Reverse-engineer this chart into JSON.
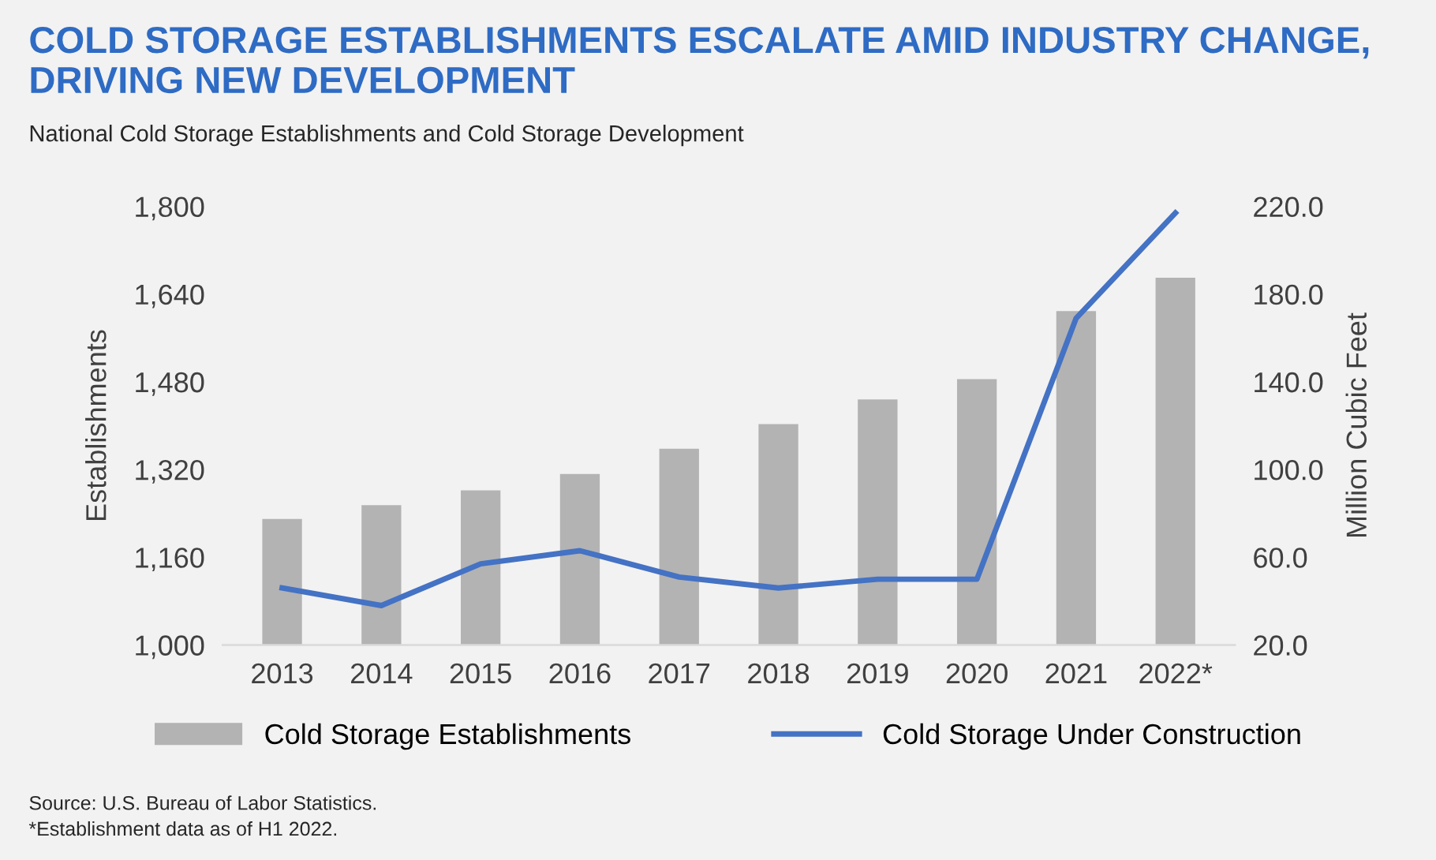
{
  "chart_data": {
    "type": "bar",
    "title": "COLD STORAGE ESTABLISHMENTS ESCALATE AMID INDUSTRY CHANGE, DRIVING NEW DEVELOPMENT",
    "subtitle": "National Cold Storage Establishments and Cold Storage Development",
    "ylabel": "Establishments",
    "y2label": "Million Cubic Feet",
    "categories": [
      "2013",
      "2014",
      "2015",
      "2016",
      "2017",
      "2018",
      "2019",
      "2020",
      "2021",
      "2022*"
    ],
    "series": [
      {
        "name": "Cold Storage Establishments",
        "color": "#b3b3b3",
        "values": [
          1230,
          1255,
          1282,
          1312,
          1358,
          1403,
          1448,
          1485,
          1609,
          1670
        ]
      },
      {
        "name": "Cold Storage Under Construction",
        "type": "line",
        "axis": "y2",
        "color": "#4472c4",
        "values": [
          46,
          38,
          57,
          63,
          51,
          46,
          50,
          50,
          169,
          217
        ]
      }
    ],
    "ylim": [
      1000,
      1800
    ],
    "yticks": [
      {
        "value": 1000,
        "label": "1,000"
      },
      {
        "value": 1160,
        "label": "1,160"
      },
      {
        "value": 1320,
        "label": "1,320"
      },
      {
        "value": 1480,
        "label": "1,480"
      },
      {
        "value": 1640,
        "label": "1,640"
      },
      {
        "value": 1800,
        "label": "1,800"
      }
    ],
    "y2lim": [
      20,
      220
    ],
    "y2ticks": [
      {
        "value": 20,
        "label": "20.0"
      },
      {
        "value": 60,
        "label": "60.0"
      },
      {
        "value": 100,
        "label": "100.0"
      },
      {
        "value": 140,
        "label": "140.0"
      },
      {
        "value": 180,
        "label": "180.0"
      },
      {
        "value": 220,
        "label": "220.0"
      }
    ],
    "legend": "bottom",
    "marker": "none",
    "line_style": "solid",
    "annotations": [
      "Source: U.S. Bureau of Labor Statistics.",
      "*Establishment data as of H1 2022."
    ]
  }
}
